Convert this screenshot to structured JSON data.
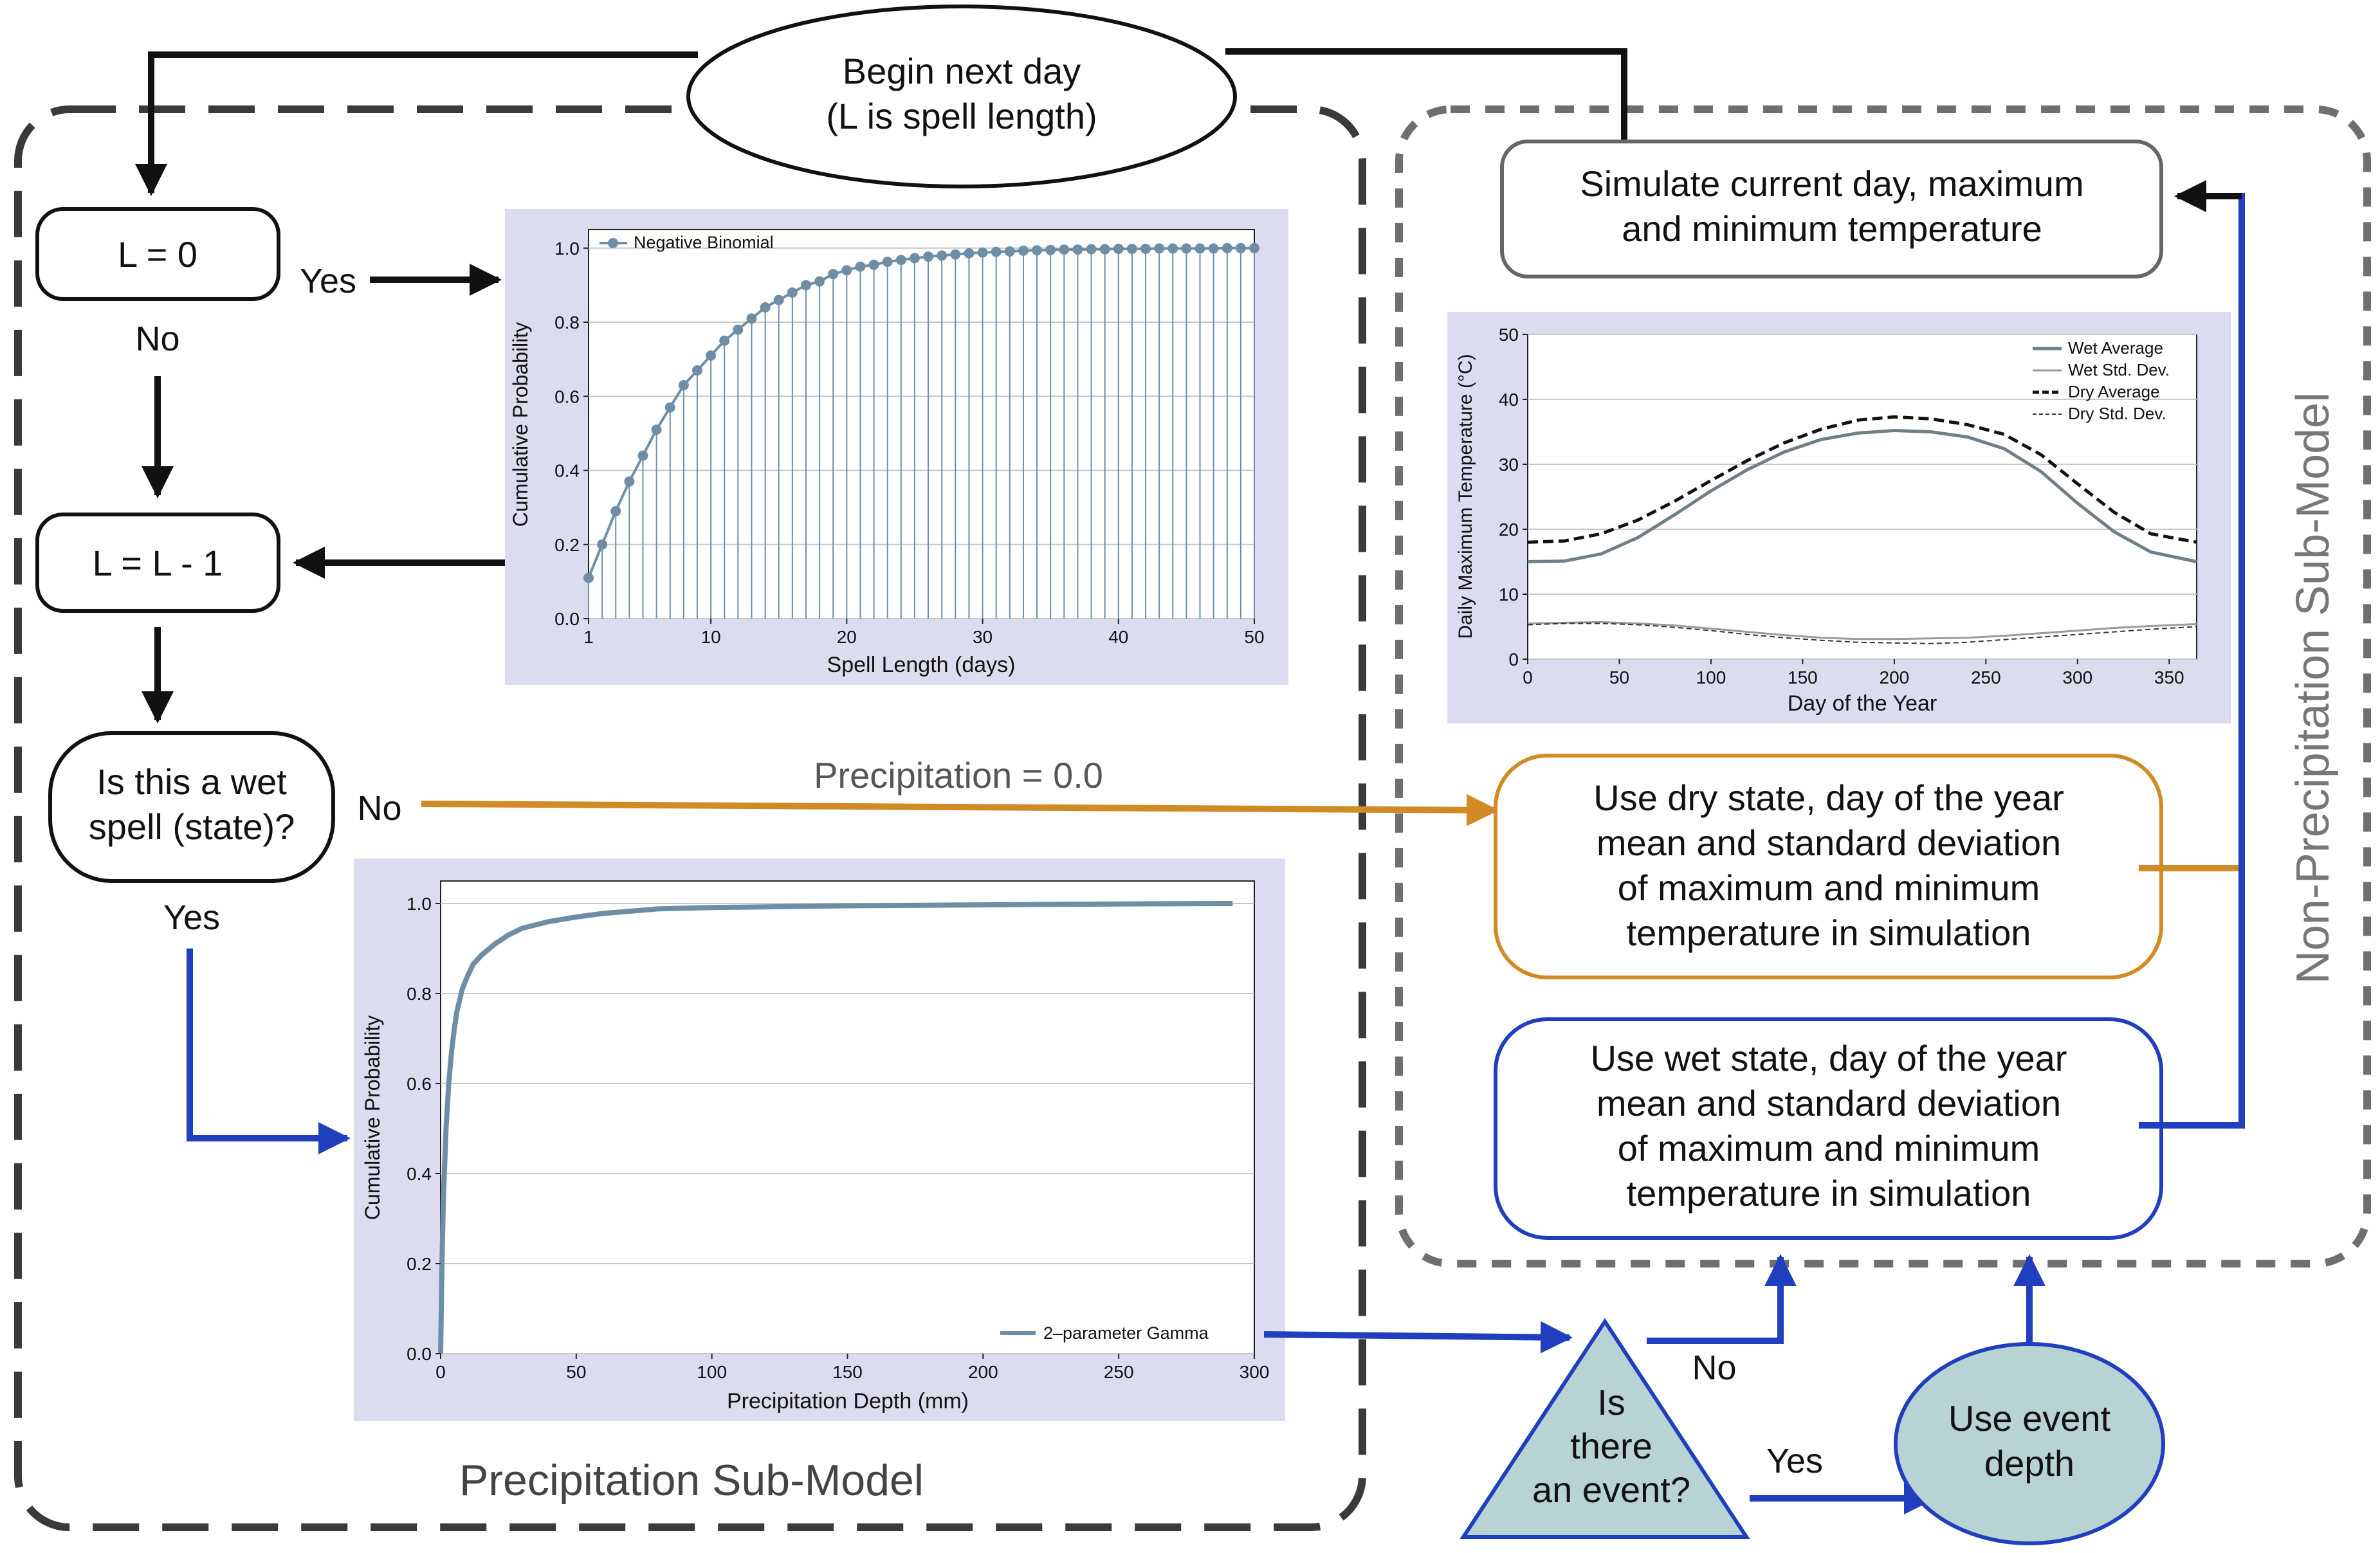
{
  "title": {
    "line1": "Begin next day",
    "line2": "(L is spell length)"
  },
  "nodes": {
    "l_zero": "L = 0",
    "l_decrement": "L = L - 1",
    "wet_spell": {
      "line1": "Is this a wet",
      "line2": "spell (state)?"
    },
    "simulate": {
      "line1": "Simulate current day, maximum",
      "line2": "and minimum temperature"
    },
    "dry_state": {
      "line1": "Use dry state, day of the year",
      "line2": "mean and standard deviation",
      "line3": "of maximum and minimum",
      "line4": "temperature in simulation"
    },
    "wet_state": {
      "line1": "Use wet state, day of the year",
      "line2": "mean and standard deviation",
      "line3": "of maximum and minimum",
      "line4": "temperature in simulation"
    },
    "event_question": {
      "line1": "Is",
      "line2": "there",
      "line3": "an event?"
    },
    "event_depth": {
      "line1": "Use event",
      "line2": "depth"
    }
  },
  "edge_labels": {
    "l_zero_yes": "Yes",
    "l_zero_no": "No",
    "wet_no": "No",
    "wet_yes": "Yes",
    "precip_zero": "Precipitation = 0.0",
    "event_no": "No",
    "event_yes": "Yes"
  },
  "regions": {
    "precip": "Precipitation Sub-Model",
    "nonprecip": "Non-Precipitation Sub-Model"
  },
  "colors": {
    "orange": "#d28a24",
    "blue": "#1f3fbf",
    "chart_bg": "#dcdcf0",
    "series": "#6f8ea6",
    "event_fill": "#b8d3d3"
  },
  "chart_data": [
    {
      "type": "line",
      "title": "",
      "xlabel": "Spell Length (days)",
      "ylabel": "Cumulative Probability",
      "legend": [
        "Negative Binomial"
      ],
      "xlim": [
        1,
        50
      ],
      "ylim": [
        0,
        1.05
      ],
      "xticks": [
        1,
        10,
        20,
        30,
        40,
        50
      ],
      "yticks": [
        0.0,
        0.2,
        0.4,
        0.6,
        0.8,
        1.0
      ],
      "ytick_labels": [
        "0.0",
        "0.2",
        "0.4",
        "0.6",
        "0.8",
        "1.0"
      ],
      "series": [
        {
          "name": "Negative Binomial",
          "x": [
            1,
            2,
            3,
            4,
            5,
            6,
            7,
            8,
            9,
            10,
            11,
            12,
            13,
            14,
            15,
            16,
            17,
            18,
            19,
            20,
            21,
            22,
            23,
            24,
            25,
            26,
            27,
            28,
            29,
            30,
            31,
            32,
            33,
            34,
            35,
            36,
            37,
            38,
            39,
            40,
            41,
            42,
            43,
            44,
            45,
            46,
            47,
            48,
            49,
            50
          ],
          "values": [
            0.11,
            0.2,
            0.29,
            0.37,
            0.44,
            0.51,
            0.57,
            0.63,
            0.67,
            0.71,
            0.75,
            0.78,
            0.81,
            0.84,
            0.86,
            0.88,
            0.9,
            0.91,
            0.93,
            0.94,
            0.95,
            0.955,
            0.963,
            0.968,
            0.973,
            0.977,
            0.98,
            0.983,
            0.986,
            0.988,
            0.99,
            0.991,
            0.993,
            0.994,
            0.995,
            0.996,
            0.996,
            0.997,
            0.997,
            0.998,
            0.998,
            0.998,
            0.999,
            0.999,
            0.999,
            0.999,
            0.999,
            1.0,
            1.0,
            1.0
          ]
        }
      ]
    },
    {
      "type": "line",
      "title": "",
      "xlabel": "Day of the Year",
      "ylabel": "Daily Maximum Temperature (°C)",
      "legend": [
        "Wet Average",
        "Wet Std. Dev.",
        "Dry Average",
        "Dry Std. Dev."
      ],
      "xlim": [
        0,
        365
      ],
      "ylim": [
        0,
        50
      ],
      "xticks": [
        0,
        50,
        100,
        150,
        200,
        250,
        300,
        350
      ],
      "yticks": [
        0,
        10,
        20,
        30,
        40,
        50
      ],
      "ytick_labels": [
        "0",
        "10",
        "20",
        "30",
        "40",
        "50"
      ],
      "x": [
        0,
        20,
        40,
        60,
        80,
        100,
        120,
        140,
        160,
        180,
        200,
        220,
        240,
        260,
        280,
        300,
        320,
        340,
        365
      ],
      "series": [
        {
          "name": "Wet Average",
          "values": [
            15.0,
            15.1,
            16.2,
            18.7,
            22.2,
            25.9,
            29.2,
            31.9,
            33.8,
            34.8,
            35.2,
            35.0,
            34.2,
            32.4,
            28.9,
            24.0,
            19.6,
            16.5,
            15.0
          ]
        },
        {
          "name": "Wet Std. Dev.",
          "values": [
            5.5,
            5.6,
            5.7,
            5.5,
            5.2,
            4.7,
            4.2,
            3.7,
            3.3,
            3.1,
            3.1,
            3.2,
            3.3,
            3.6,
            4.0,
            4.4,
            4.8,
            5.1,
            5.4
          ]
        },
        {
          "name": "Dry Average",
          "values": [
            18.0,
            18.2,
            19.3,
            21.4,
            24.3,
            27.5,
            30.6,
            33.3,
            35.4,
            36.8,
            37.3,
            37.0,
            36.1,
            34.6,
            31.5,
            27.0,
            22.6,
            19.3,
            18.0
          ]
        },
        {
          "name": "Dry Std. Dev.",
          "values": [
            5.3,
            5.5,
            5.5,
            5.3,
            4.9,
            4.4,
            3.8,
            3.3,
            2.9,
            2.6,
            2.5,
            2.4,
            2.6,
            3.0,
            3.4,
            3.8,
            4.2,
            4.6,
            5.0
          ]
        }
      ]
    },
    {
      "type": "line",
      "title": "",
      "xlabel": "Precipitation Depth (mm)",
      "ylabel": "Cumulative Probability",
      "legend": [
        "2–parameter Gamma"
      ],
      "xlim": [
        0,
        300
      ],
      "ylim": [
        0,
        1.05
      ],
      "xticks": [
        0,
        50,
        100,
        150,
        200,
        250,
        300
      ],
      "yticks": [
        0.0,
        0.2,
        0.4,
        0.6,
        0.8,
        1.0
      ],
      "ytick_labels": [
        "0.0",
        "0.2",
        "0.4",
        "0.6",
        "0.8",
        "1.0"
      ],
      "series": [
        {
          "name": "2–parameter Gamma",
          "x": [
            0,
            0.5,
            1,
            2,
            3,
            4,
            5,
            6,
            8,
            10,
            12,
            15,
            20,
            25,
            30,
            40,
            50,
            60,
            80,
            100,
            150,
            200,
            250,
            292
          ],
          "values": [
            0,
            0.2,
            0.34,
            0.5,
            0.6,
            0.67,
            0.72,
            0.76,
            0.81,
            0.84,
            0.865,
            0.885,
            0.91,
            0.93,
            0.945,
            0.96,
            0.97,
            0.978,
            0.988,
            0.991,
            0.995,
            0.997,
            0.999,
            1.0
          ]
        }
      ]
    }
  ]
}
